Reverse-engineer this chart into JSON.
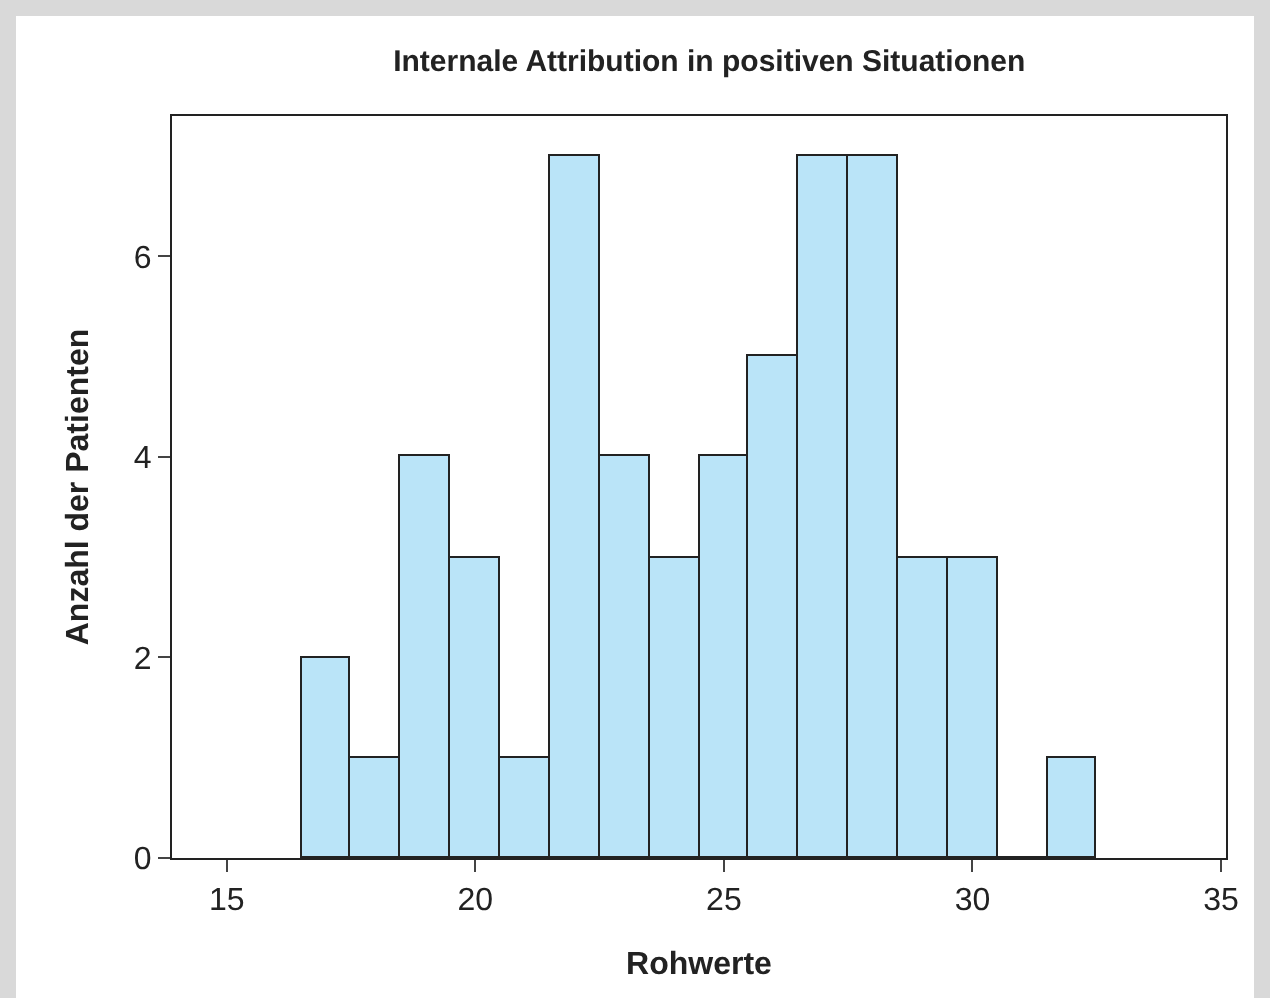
{
  "chart_data": {
    "type": "histogram",
    "title": "Internale Attribution in positiven Situationen",
    "xlabel": "Rohwerte",
    "ylabel": "Anzahl der Patienten",
    "bins": [
      16.5,
      17.5,
      18.5,
      19.5,
      20.5,
      21.5,
      22.5,
      23.5,
      24.5,
      25.5,
      26.5,
      27.5,
      28.5,
      29.5,
      30.5,
      31.5,
      32.5
    ],
    "values": [
      2,
      1,
      4,
      3,
      1,
      7,
      4,
      3,
      4,
      5,
      7,
      7,
      3,
      3,
      0,
      1
    ],
    "color": "#bae4f8",
    "xlim": [
      13.9,
      35.1
    ],
    "xticks": [
      15,
      20,
      25,
      30,
      35
    ],
    "ylim": [
      0,
      7.4
    ],
    "yticks": [
      0,
      2,
      4,
      6
    ],
    "grid": false
  }
}
